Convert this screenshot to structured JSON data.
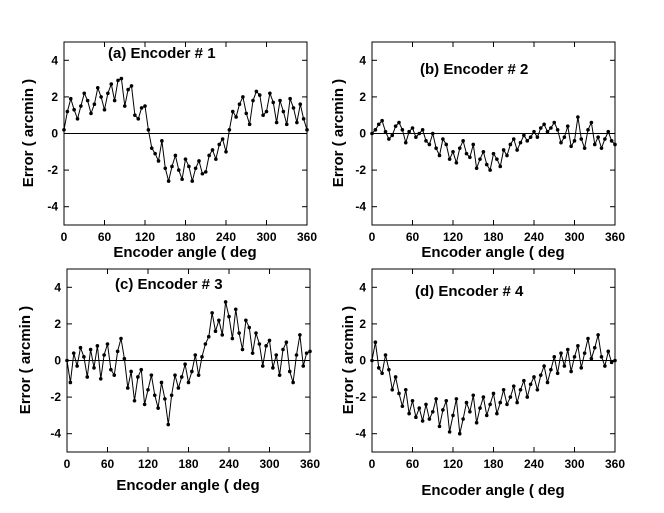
{
  "figure": {
    "layout": "2x2 grid of line charts"
  },
  "chart_data": [
    {
      "type": "line",
      "panel": "a",
      "title": "(a)  Encoder  # 1",
      "xlabel": "Encoder angle ( deg",
      "ylabel": "Error  ( arcmin )",
      "xlim": [
        0,
        360
      ],
      "ylim": [
        -5,
        5
      ],
      "xticks": [
        "0",
        "60",
        "120",
        "180",
        "240",
        "300",
        "360"
      ],
      "yticks": [
        "4",
        "2",
        "0",
        "-2",
        "-4"
      ],
      "reference_line": 0,
      "series": [
        {
          "name": "Encoder # 1",
          "x": [
            0,
            5,
            10,
            15,
            20,
            25,
            30,
            35,
            40,
            45,
            50,
            55,
            60,
            65,
            70,
            75,
            80,
            85,
            90,
            95,
            100,
            105,
            110,
            115,
            120,
            125,
            130,
            135,
            140,
            145,
            150,
            155,
            160,
            165,
            170,
            175,
            180,
            185,
            190,
            195,
            200,
            205,
            210,
            215,
            220,
            225,
            230,
            235,
            240,
            245,
            250,
            255,
            260,
            265,
            270,
            275,
            280,
            285,
            290,
            295,
            300,
            305,
            310,
            315,
            320,
            325,
            330,
            335,
            340,
            345,
            350,
            355,
            360
          ],
          "y": [
            0.2,
            1.2,
            1.9,
            1.3,
            0.8,
            1.5,
            2.2,
            1.8,
            1.1,
            1.6,
            2.5,
            2.0,
            1.3,
            2.2,
            2.7,
            1.8,
            2.9,
            3.0,
            1.5,
            2.4,
            2.6,
            1.0,
            0.8,
            1.4,
            1.5,
            0.2,
            -0.8,
            -1.1,
            -1.5,
            -0.4,
            -1.9,
            -2.6,
            -1.8,
            -1.2,
            -2.0,
            -2.5,
            -1.4,
            -1.8,
            -2.6,
            -1.9,
            -1.5,
            -2.2,
            -2.1,
            -1.2,
            -0.9,
            -1.4,
            -0.6,
            -0.3,
            -1.0,
            0.2,
            1.2,
            0.9,
            1.6,
            2.0,
            1.1,
            0.5,
            1.8,
            2.3,
            2.1,
            1.0,
            1.2,
            2.2,
            1.7,
            0.6,
            1.8,
            1.2,
            0.5,
            1.9,
            1.4,
            0.6,
            1.6,
            0.8,
            0.2
          ]
        }
      ]
    },
    {
      "type": "line",
      "panel": "b",
      "title": "(b)  Encoder  # 2",
      "xlabel": "Encoder angle ( deg",
      "ylabel": "Error  ( arcmin )",
      "xlim": [
        0,
        360
      ],
      "ylim": [
        -5,
        5
      ],
      "xticks": [
        "0",
        "60",
        "120",
        "180",
        "240",
        "300",
        "360"
      ],
      "yticks": [
        "4",
        "2",
        "0",
        "-2",
        "-4"
      ],
      "reference_line": 0,
      "series": [
        {
          "name": "Encoder # 2",
          "x": [
            0,
            5,
            10,
            15,
            20,
            25,
            30,
            35,
            40,
            45,
            50,
            55,
            60,
            65,
            70,
            75,
            80,
            85,
            90,
            95,
            100,
            105,
            110,
            115,
            120,
            125,
            130,
            135,
            140,
            145,
            150,
            155,
            160,
            165,
            170,
            175,
            180,
            185,
            190,
            195,
            200,
            205,
            210,
            215,
            220,
            225,
            230,
            235,
            240,
            245,
            250,
            255,
            260,
            265,
            270,
            275,
            280,
            285,
            290,
            295,
            300,
            305,
            310,
            315,
            320,
            325,
            330,
            335,
            340,
            345,
            350,
            355,
            360
          ],
          "y": [
            0.0,
            0.2,
            0.5,
            0.7,
            0.1,
            -0.3,
            -0.1,
            0.4,
            0.6,
            0.2,
            -0.5,
            0.1,
            0.3,
            -0.2,
            0.0,
            0.2,
            -0.4,
            -0.6,
            0.0,
            -0.8,
            -1.2,
            -0.3,
            -0.6,
            -1.4,
            -1.0,
            -1.6,
            -0.8,
            -0.4,
            -1.1,
            -1.3,
            -0.6,
            -1.9,
            -1.4,
            -1.0,
            -1.7,
            -2.0,
            -1.1,
            -1.4,
            -1.8,
            -0.9,
            -1.2,
            -0.6,
            -0.3,
            -0.9,
            -0.5,
            -0.1,
            -0.4,
            -0.2,
            0.1,
            -0.2,
            0.3,
            0.5,
            0.1,
            0.3,
            0.6,
            0.2,
            -0.5,
            -0.2,
            0.4,
            -0.7,
            -0.4,
            0.9,
            -0.3,
            -0.8,
            0.2,
            0.6,
            -0.6,
            -0.2,
            -0.8,
            -0.3,
            0.1,
            -0.4,
            -0.6
          ]
        }
      ]
    },
    {
      "type": "line",
      "panel": "c",
      "title": "(c)  Encoder   # 3",
      "xlabel": "Encoder angle ( deg",
      "ylabel": "Error  ( arcmin )",
      "xlim": [
        0,
        360
      ],
      "ylim": [
        -5,
        5
      ],
      "xticks": [
        "0",
        "60",
        "120",
        "180",
        "240",
        "300",
        "360"
      ],
      "yticks": [
        "4",
        "2",
        "0",
        "-2",
        "-4"
      ],
      "reference_line": 0,
      "series": [
        {
          "name": "Encoder # 3",
          "x": [
            0,
            5,
            10,
            15,
            20,
            25,
            30,
            35,
            40,
            45,
            50,
            55,
            60,
            65,
            70,
            75,
            80,
            85,
            90,
            95,
            100,
            105,
            110,
            115,
            120,
            125,
            130,
            135,
            140,
            145,
            150,
            155,
            160,
            165,
            170,
            175,
            180,
            185,
            190,
            195,
            200,
            205,
            210,
            215,
            220,
            225,
            230,
            235,
            240,
            245,
            250,
            255,
            260,
            265,
            270,
            275,
            280,
            285,
            290,
            295,
            300,
            305,
            310,
            315,
            320,
            325,
            330,
            335,
            340,
            345,
            350,
            355,
            360
          ],
          "y": [
            0.0,
            -1.2,
            0.4,
            -0.3,
            0.7,
            0.2,
            -0.9,
            0.6,
            -0.4,
            0.8,
            -1.0,
            0.3,
            0.9,
            -0.5,
            -0.8,
            0.5,
            1.2,
            0.1,
            -1.5,
            -0.6,
            -2.2,
            -0.9,
            -0.5,
            -2.4,
            -1.6,
            -0.8,
            -1.9,
            -2.6,
            -1.2,
            -2.1,
            -3.5,
            -1.9,
            -0.8,
            -1.5,
            -0.9,
            -0.2,
            -1.2,
            -0.6,
            0.3,
            -0.8,
            0.2,
            0.9,
            1.3,
            2.6,
            1.6,
            2.2,
            1.4,
            3.2,
            2.4,
            1.2,
            2.8,
            1.5,
            0.6,
            2.2,
            1.8,
            0.4,
            1.5,
            0.9,
            -0.3,
            0.8,
            1.1,
            -0.4,
            0.3,
            -0.8,
            0.6,
            1.0,
            -0.6,
            -1.2,
            0.3,
            1.4,
            -0.3,
            0.4,
            0.5
          ]
        }
      ]
    },
    {
      "type": "line",
      "panel": "d",
      "title": "(d)  Encoder   # 4",
      "xlabel": "Encoder angle ( deg",
      "ylabel": "Error  ( arcmin )",
      "xlim": [
        0,
        360
      ],
      "ylim": [
        -5,
        5
      ],
      "xticks": [
        "0",
        "60",
        "120",
        "180",
        "240",
        "300",
        "360"
      ],
      "yticks": [
        "4",
        "2",
        "0",
        "-2",
        "-4"
      ],
      "reference_line": 0,
      "series": [
        {
          "name": "Encoder # 4",
          "x": [
            0,
            5,
            10,
            15,
            20,
            25,
            30,
            35,
            40,
            45,
            50,
            55,
            60,
            65,
            70,
            75,
            80,
            85,
            90,
            95,
            100,
            105,
            110,
            115,
            120,
            125,
            130,
            135,
            140,
            145,
            150,
            155,
            160,
            165,
            170,
            175,
            180,
            185,
            190,
            195,
            200,
            205,
            210,
            215,
            220,
            225,
            230,
            235,
            240,
            245,
            250,
            255,
            260,
            265,
            270,
            275,
            280,
            285,
            290,
            295,
            300,
            305,
            310,
            315,
            320,
            325,
            330,
            335,
            340,
            345,
            350,
            355,
            360
          ],
          "y": [
            0.0,
            1.0,
            -0.4,
            -0.7,
            0.3,
            -0.5,
            -1.6,
            -0.9,
            -1.8,
            -2.5,
            -1.6,
            -2.9,
            -2.2,
            -3.1,
            -2.6,
            -3.3,
            -2.4,
            -3.2,
            -2.8,
            -2.1,
            -3.6,
            -2.7,
            -2.2,
            -3.9,
            -3.0,
            -2.1,
            -4.0,
            -3.2,
            -2.3,
            -2.8,
            -1.9,
            -3.4,
            -2.6,
            -2.0,
            -3.0,
            -2.4,
            -1.8,
            -2.9,
            -2.3,
            -1.6,
            -2.4,
            -2.0,
            -1.4,
            -2.3,
            -1.6,
            -1.1,
            -2.0,
            -1.3,
            -0.9,
            -1.6,
            -0.8,
            -0.3,
            -1.2,
            -0.5,
            0.2,
            -0.7,
            0.4,
            -0.3,
            0.6,
            -0.6,
            0.2,
            0.8,
            -0.4,
            0.4,
            1.2,
            0.1,
            0.7,
            1.4,
            0.2,
            -0.3,
            0.5,
            -0.1,
            0.0
          ]
        }
      ]
    }
  ]
}
